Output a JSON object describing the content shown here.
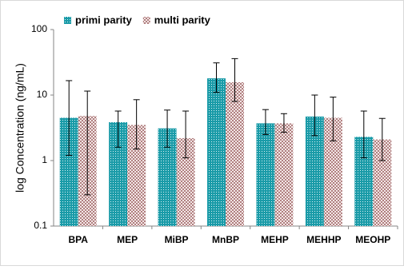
{
  "chart_data": {
    "type": "bar",
    "y_label": "log Concentration (ng/mL)",
    "categories": [
      "BPA",
      "MEP",
      "MiBP",
      "MnBP",
      "MEHP",
      "MEHHP",
      "MEOHP"
    ],
    "series": [
      {
        "name": "primi parity",
        "color": "#1a9ba8",
        "values": [
          4.5,
          3.85,
          3.1,
          18,
          3.7,
          4.7,
          2.3
        ],
        "lower": [
          1.2,
          1.6,
          1.6,
          11,
          2.5,
          2.4,
          1.1
        ],
        "upper": [
          16.6,
          5.7,
          5.9,
          31,
          6,
          10,
          5.7
        ]
      },
      {
        "name": "multi parity",
        "color": "#c9a3a3",
        "values": [
          4.8,
          3.5,
          2.2,
          15.7,
          3.7,
          4.5,
          2.1
        ],
        "lower": [
          0.3,
          1.5,
          1.1,
          8,
          2.7,
          2,
          1.0
        ],
        "upper": [
          11.5,
          8.5,
          5.7,
          36,
          5.2,
          9.3,
          4.4
        ]
      }
    ],
    "ylim": [
      0.1,
      100
    ],
    "yticks": [
      0.1,
      1,
      10,
      100
    ],
    "log_y": true,
    "legend": "top-left"
  }
}
